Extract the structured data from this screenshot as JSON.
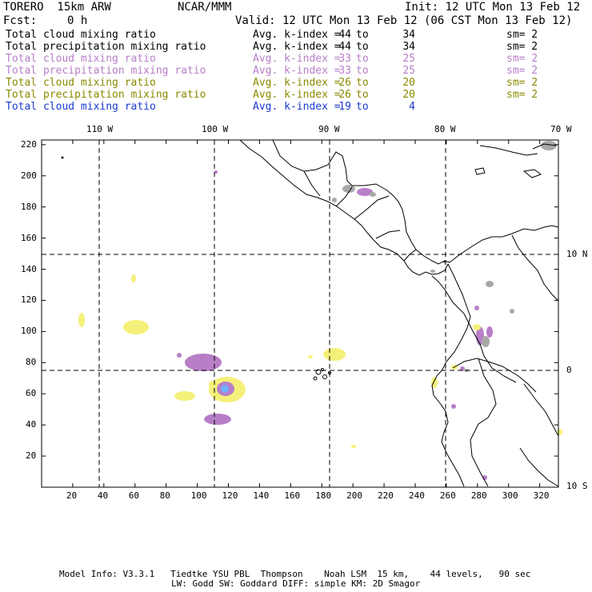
{
  "header": {
    "model": "TORERO  15km ARW",
    "center": "NCAR/MMM",
    "init": "Init: 12 UTC Mon 13 Feb 12",
    "fcst_label": "Fcst:",
    "fcst_value": "0 h",
    "valid": "Valid: 12 UTC Mon 13 Feb 12 (06 CST Mon 13 Feb 12)"
  },
  "legend": [
    {
      "name": "Total cloud mixing ratio",
      "avg": "Avg. k-index =",
      "a": "44",
      "to": "to",
      "b": "34",
      "sm": "sm= 2",
      "color": "#000000"
    },
    {
      "name": "Total precipitation mixing ratio",
      "avg": "Avg. k-index =",
      "a": "44",
      "to": "to",
      "b": "34",
      "sm": "sm= 2",
      "color": "#000000"
    },
    {
      "name": "Total cloud mixing ratio",
      "avg": "Avg. k-index =",
      "a": "33",
      "to": "to",
      "b": "25",
      "sm": "sm= 2",
      "color": "#b87ec8"
    },
    {
      "name": "Total precipitation mixing ratio",
      "avg": "Avg. k-index =",
      "a": "33",
      "to": "to",
      "b": "25",
      "sm": "sm= 2",
      "color": "#b87ec8"
    },
    {
      "name": "Total cloud mixing ratio",
      "avg": "Avg. k-index =",
      "a": "26",
      "to": "to",
      "b": "20",
      "sm": "sm= 2",
      "color": "#8a8a00"
    },
    {
      "name": "Total precipitation mixing ratio",
      "avg": "Avg. k-index =",
      "a": "26",
      "to": "to",
      "b": "20",
      "sm": "sm= 2",
      "color": "#8a8a00"
    },
    {
      "name": "Total cloud mixing ratio",
      "avg": "Avg. k-index =",
      "a": "19",
      "to": "to",
      "b": "4",
      "sm": "",
      "color": "#1a3ad0"
    }
  ],
  "map": {
    "lon_labels": [
      "110 W",
      "100 W",
      "90 W",
      "80 W",
      "70 W"
    ],
    "lat_labels": [
      "10 N",
      "0",
      "10 S"
    ],
    "x_ticks": [
      "20",
      "40",
      "60",
      "80",
      "100",
      "120",
      "140",
      "160",
      "180",
      "200",
      "220",
      "240",
      "260",
      "280",
      "300",
      "320"
    ],
    "y_ticks": [
      "20",
      "40",
      "60",
      "80",
      "100",
      "120",
      "140",
      "160",
      "180",
      "200",
      "220"
    ],
    "colors": {
      "purple": "#b87ec8",
      "yellow": "#f5f07a",
      "gray": "#a8a8a8",
      "blue": "#70b0ff",
      "border": "#000000",
      "grid": "#000000"
    }
  },
  "footer": {
    "line1": "Model Info: V3.3.1   Tiedtke YSU PBL  Thompson    Noah LSM  15 km,    44 levels,   90 sec",
    "line2": "LW: Godd SW: Goddard DIFF: simple KM: 2D Smagor"
  }
}
